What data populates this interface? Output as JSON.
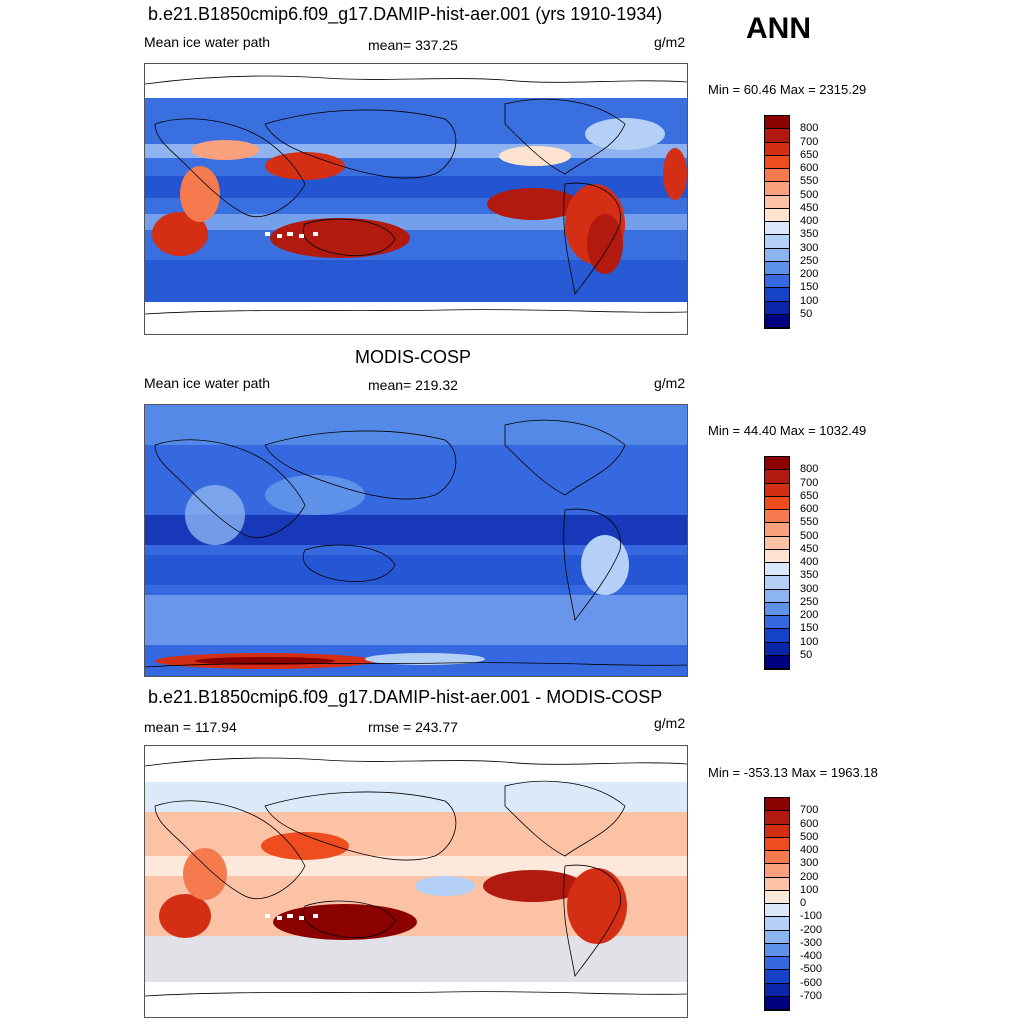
{
  "season": "ANN",
  "panels": [
    {
      "title": "b.e21.B1850cmip6.f09_g17.DAMIP-hist-aer.001 (yrs 1910-1934)",
      "left_label": "Mean ice water path",
      "center_label": "mean= 337.25",
      "units": "g/m2",
      "minmax": "Min =  60.46 Max = 2315.29",
      "colorbar": {
        "levels": [
          "800",
          "700",
          "650",
          "600",
          "550",
          "500",
          "450",
          "400",
          "350",
          "300",
          "250",
          "200",
          "150",
          "100",
          "50"
        ],
        "colors": [
          "#8b0000",
          "#b2190f",
          "#d42f14",
          "#ef4d1f",
          "#f57a4e",
          "#f9a07c",
          "#fbc2a6",
          "#fde3d0",
          "#d8e8fa",
          "#b4d0f6",
          "#8cb4f0",
          "#5e91e8",
          "#3669e0",
          "#1443c8",
          "#0a25a8",
          "#000080"
        ]
      }
    },
    {
      "title": "MODIS-COSP",
      "left_label": "Mean ice water path",
      "center_label": "mean= 219.32",
      "units": "g/m2",
      "minmax": "Min =  44.40 Max = 1032.49",
      "colorbar": {
        "levels": [
          "800",
          "700",
          "650",
          "600",
          "550",
          "500",
          "450",
          "400",
          "350",
          "300",
          "250",
          "200",
          "150",
          "100",
          "50"
        ],
        "colors": [
          "#8b0000",
          "#b2190f",
          "#d42f14",
          "#ef4d1f",
          "#f57a4e",
          "#f9a07c",
          "#fbc2a6",
          "#fde3d0",
          "#d8e8fa",
          "#b4d0f6",
          "#8cb4f0",
          "#5e91e8",
          "#3669e0",
          "#1443c8",
          "#0a25a8",
          "#000080"
        ]
      }
    },
    {
      "title": "b.e21.B1850cmip6.f09_g17.DAMIP-hist-aer.001 - MODIS-COSP",
      "left_label": "mean = 117.94",
      "center_label": "rmse = 243.77",
      "units": "g/m2",
      "minmax": "Min = -353.13 Max = 1963.18",
      "colorbar": {
        "levels": [
          "700",
          "600",
          "500",
          "400",
          "300",
          "200",
          "100",
          "0",
          "-100",
          "-200",
          "-300",
          "-400",
          "-500",
          "-600",
          "-700"
        ],
        "colors": [
          "#8b0000",
          "#b2190f",
          "#d42f14",
          "#ef4d1f",
          "#f57a4e",
          "#f9a07c",
          "#fbc2a6",
          "#fde8dc",
          "#dbe9f8",
          "#b4d0f6",
          "#8cb4f0",
          "#5e91e8",
          "#3669e0",
          "#1443c8",
          "#0a25a8",
          "#000080"
        ]
      }
    }
  ]
}
